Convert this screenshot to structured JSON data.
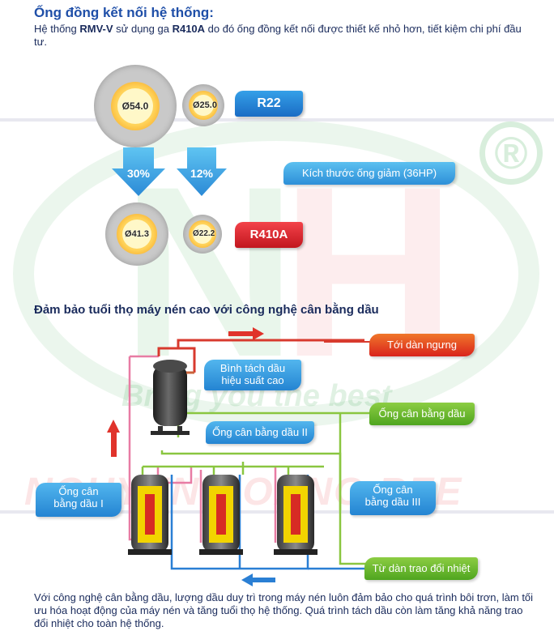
{
  "watermark": {
    "letters_n": "N",
    "letters_h": "H",
    "registered": "®",
    "slogan": "Bring you the best",
    "company": "NGUYEN HOANG REE"
  },
  "section1": {
    "title": "Ống đồng kết nối hệ thống:",
    "desc_pre": "Hệ thống ",
    "desc_bold1": "RMV-V",
    "desc_mid": " sử dụng ga ",
    "desc_bold2": "R410A",
    "desc_post": " do đó ống đồng kết nối được thiết kế nhỏ hơn, tiết kiệm chi phí đầu tư.",
    "r22": {
      "label": "R22",
      "pipe_large": "Ø54.0",
      "pipe_small": "Ø25.0"
    },
    "r410a": {
      "label": "R410A",
      "pipe_large": "Ø41.3",
      "pipe_small": "Ø22.2"
    },
    "reduction_large": "30%",
    "reduction_small": "12%",
    "reduction_label": "Kích thước ống giảm (36HP)"
  },
  "section2": {
    "title": "Đảm bảo tuổi thọ máy nén cao với công nghệ cân bằng dầu",
    "labels": {
      "to_condenser": "Tới dàn ngưng",
      "separator": "Bình tách dầu hiệu suất cao",
      "separator_line1": "Bình tách dầu",
      "separator_line2": "hiệu suất cao",
      "oil_balance_main": "Ống cân bằng dầu",
      "oil_balance_2": "Ống cân bằng dầu II",
      "oil_balance_1_line1": "Ống cân",
      "oil_balance_1_line2": "bằng dầu I",
      "oil_balance_3_line1": "Ống cân",
      "oil_balance_3_line2": "bằng dầu III",
      "from_exchanger": "Từ dàn trao đổi nhiệt"
    },
    "colors": {
      "refrigerant_out": "#e0332b",
      "refrigerant_in": "#2a7fd4",
      "oil_line": "#8ac640",
      "pipe_pink": "#e87ca4"
    }
  },
  "footer": {
    "text": "Với công nghệ cân bằng dầu, lượng dầu duy trì trong máy nén luôn đảm bảo cho quá trình bôi trơn, làm tối ưu hóa hoạt động của máy nén và tăng tuổi thọ hệ thống. Quá trình tách dầu còn làm tăng khả năng trao đổi nhiệt cho toàn hệ thống."
  }
}
